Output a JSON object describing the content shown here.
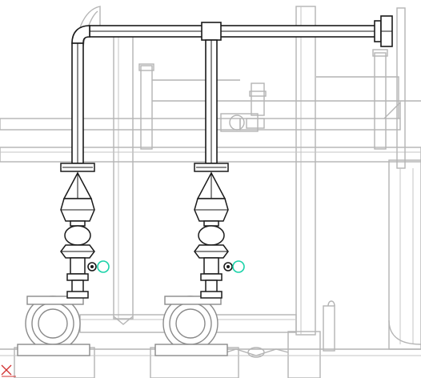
{
  "app": {
    "view_type": "3D pipe system model viewport (hidden-line view)",
    "background_color": "#ffffff",
    "highlight_color": "#19d2a8",
    "axis_marker_color": "#d23232"
  },
  "viewport": {
    "pump_assemblies": [
      {
        "id": "pump-1",
        "has_selection_grip": true
      },
      {
        "id": "pump-2",
        "has_selection_grip": true
      }
    ],
    "icons": {
      "selection_grip": "circle-grip-icon",
      "connector": "pipe-connector-icon",
      "ucs": "ucs-axis-icon"
    }
  }
}
